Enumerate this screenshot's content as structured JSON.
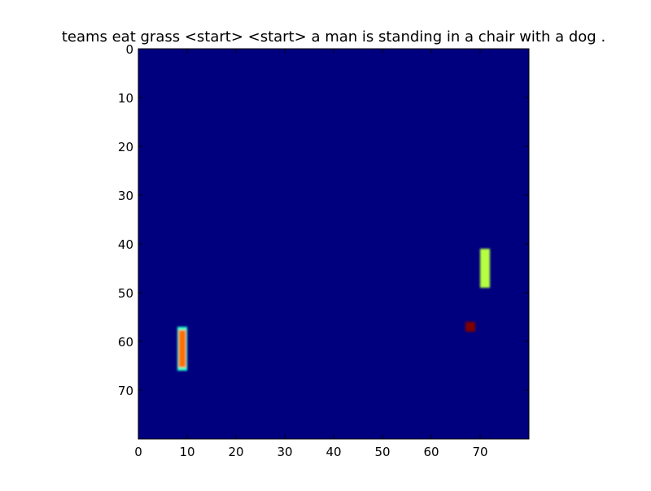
{
  "chart_data": {
    "type": "heatmap",
    "title": "teams eat grass <start> <start> a man is standing in a chair with a dog .",
    "xlabel": "",
    "ylabel": "",
    "xlim": [
      0,
      80
    ],
    "ylim": [
      80,
      0
    ],
    "x_ticks": [
      "0",
      "10",
      "20",
      "30",
      "40",
      "50",
      "60",
      "70"
    ],
    "y_ticks": [
      "0",
      "10",
      "20",
      "30",
      "40",
      "50",
      "60",
      "70"
    ],
    "grid": false,
    "colormap": "jet",
    "background_color": "#00007f",
    "regions": [
      {
        "x": [
          70,
          72
        ],
        "y": [
          41,
          49
        ],
        "color": "#b6ff41"
      },
      {
        "x": [
          67,
          69
        ],
        "y": [
          56,
          58
        ],
        "color": "#7f0000"
      },
      {
        "x": [
          8,
          10
        ],
        "y": [
          57,
          66
        ],
        "color": "#ff7000",
        "edge_color": "#29ffce"
      }
    ]
  }
}
